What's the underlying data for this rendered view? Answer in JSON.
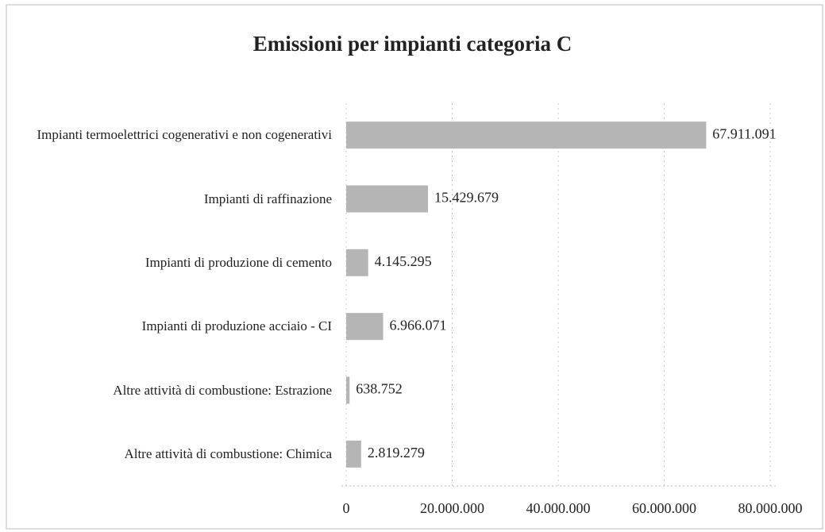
{
  "chart_data": {
    "type": "bar",
    "orientation": "horizontal",
    "title": "Emissioni per impianti categoria C",
    "categories": [
      "Impianti termoelettrici cogenerativi e non cogenerativi",
      "Impianti di raffinazione",
      "Impianti di produzione di cemento",
      "Impianti di produzione acciaio - CI",
      "Altre attività di combustione: Estrazione",
      "Altre attività di combustione: Chimica"
    ],
    "values": [
      67911091,
      15429679,
      4145295,
      6966071,
      638752,
      2819279
    ],
    "value_labels": [
      "67.911.091",
      "15.429.679",
      "4.145.295",
      "6.966.071",
      "638.752",
      "2.819.279"
    ],
    "color": "#b5b5b5",
    "xlim": [
      0,
      80000000
    ],
    "xticks": [
      0,
      {
        "value": 20000000,
        "label": "20.000.000"
      },
      {
        "value": 40000000,
        "label": "40.000.000"
      },
      {
        "value": 60000000,
        "label": "60.000.000"
      },
      {
        "value": 80000000,
        "label": "80.000.000"
      }
    ],
    "grid": true
  }
}
